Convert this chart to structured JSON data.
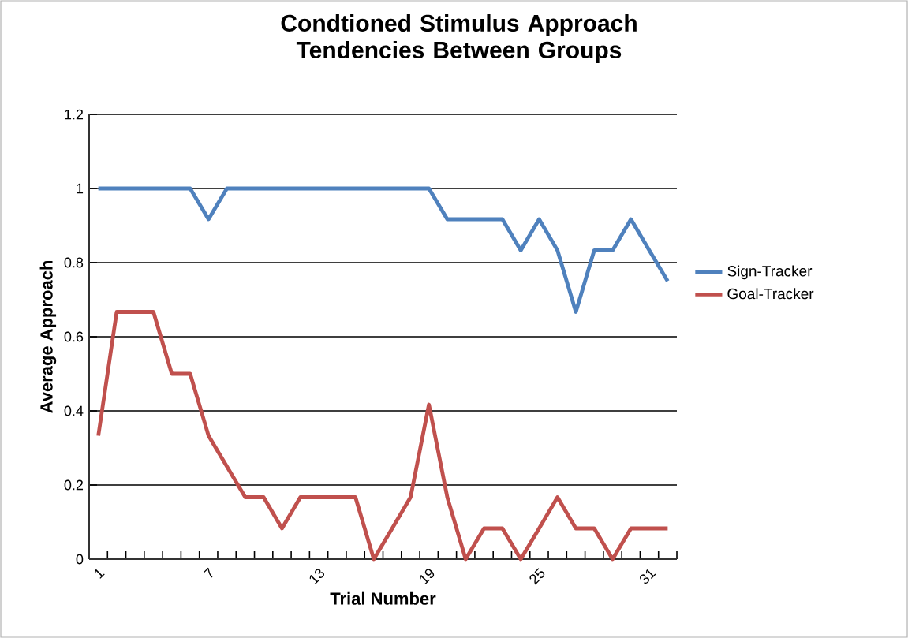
{
  "chart_data": {
    "type": "line",
    "title": "Condtioned Stimulus Approach Tendencies Between Groups",
    "xlabel": "Trial Number",
    "ylabel": "Average Approach",
    "categories": [
      "1",
      null,
      null,
      null,
      null,
      null,
      "7",
      null,
      null,
      null,
      null,
      null,
      "13",
      null,
      null,
      null,
      null,
      null,
      "19",
      null,
      null,
      null,
      null,
      null,
      "25",
      null,
      null,
      null,
      null,
      null,
      "31",
      null
    ],
    "series": [
      {
        "name": "Sign-Tracker",
        "color": "#4f81bd",
        "values": [
          1,
          1,
          1,
          1,
          1,
          1,
          0.917,
          1,
          1,
          1,
          1,
          1,
          1,
          1,
          1,
          1,
          1,
          1,
          1,
          0.917,
          0.917,
          0.917,
          0.917,
          0.833,
          0.917,
          0.833,
          0.667,
          0.833,
          0.833,
          0.917,
          0.833,
          0.75
        ]
      },
      {
        "name": "Goal-Tracker",
        "color": "#c0504d",
        "values": [
          0.333,
          0.667,
          0.667,
          0.667,
          0.5,
          0.5,
          0.333,
          0.25,
          0.167,
          0.167,
          0.083,
          0.167,
          0.167,
          0.167,
          0.167,
          0,
          0.083,
          0.167,
          0.417,
          0.167,
          0,
          0.083,
          0.083,
          0,
          0.083,
          0.167,
          0.083,
          0.083,
          0,
          0.083,
          0.083,
          0.083
        ]
      }
    ],
    "ylim": [
      0,
      1.2
    ],
    "yticks": [
      0,
      0.2,
      0.4,
      0.6,
      0.8,
      1,
      1.2
    ],
    "grid": "y",
    "legend": "right",
    "marker": "none",
    "line_style": "solid"
  }
}
